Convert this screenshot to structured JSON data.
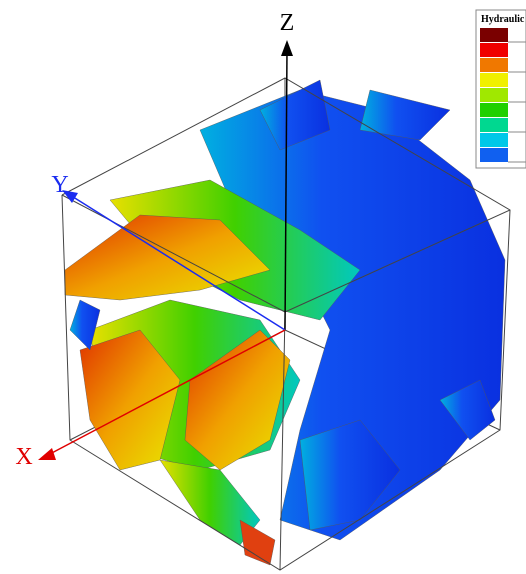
{
  "axes": {
    "z": "Z",
    "y": "Y",
    "x": "X"
  },
  "legend": {
    "title": "Hydraulic"
  }
}
